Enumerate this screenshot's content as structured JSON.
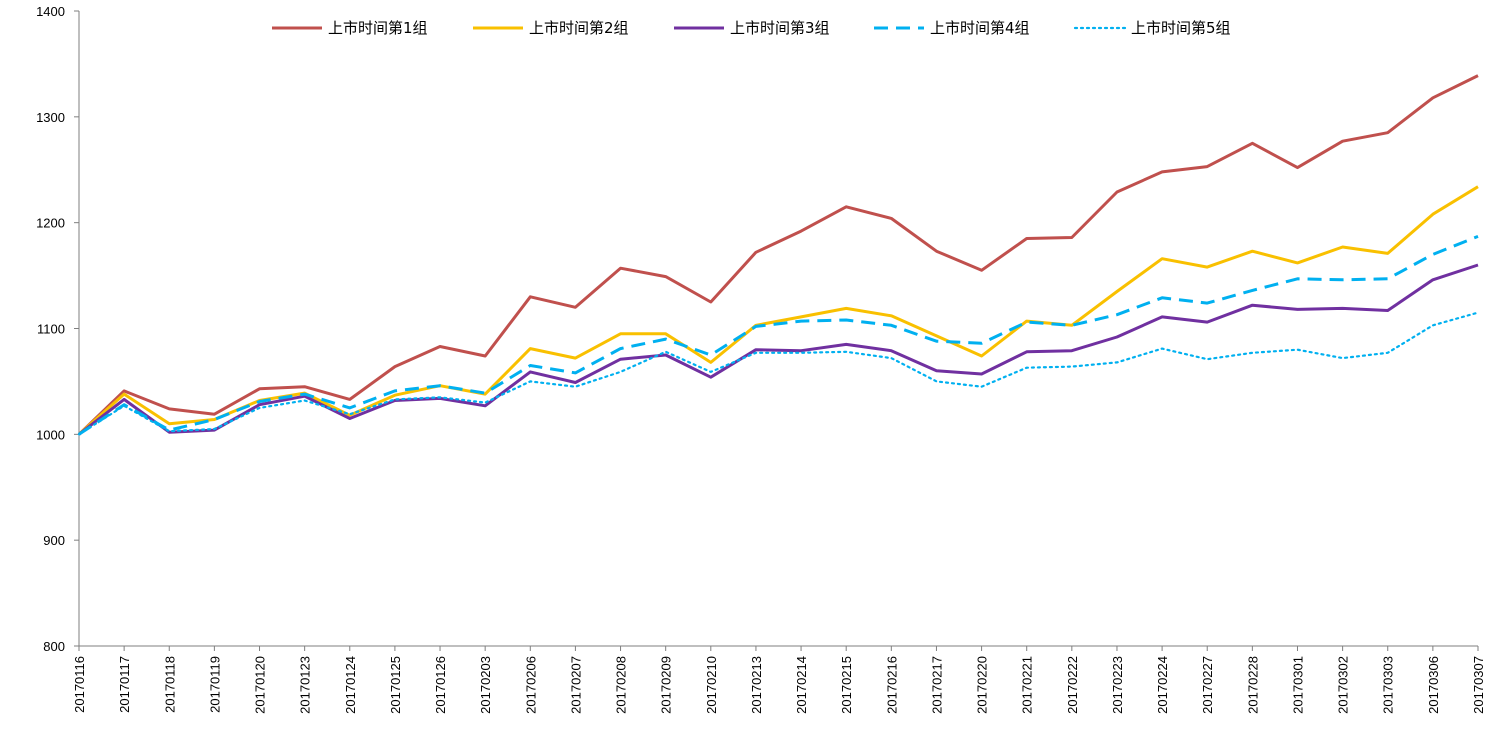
{
  "chart_data": {
    "type": "line",
    "title": "",
    "xlabel": "",
    "ylabel": "",
    "ylim": [
      800,
      1400
    ],
    "yticks": [
      800,
      900,
      1000,
      1100,
      1200,
      1300,
      1400
    ],
    "grid": false,
    "legend_position": "top",
    "categories": [
      "20170116",
      "20170117",
      "20170118",
      "20170119",
      "20170120",
      "20170123",
      "20170124",
      "20170125",
      "20170126",
      "20170203",
      "20170206",
      "20170207",
      "20170208",
      "20170209",
      "20170210",
      "20170213",
      "20170214",
      "20170215",
      "20170216",
      "20170217",
      "20170220",
      "20170221",
      "20170222",
      "20170223",
      "20170224",
      "20170227",
      "20170228",
      "20170301",
      "20170302",
      "20170303",
      "20170306",
      "20170307"
    ],
    "series": [
      {
        "name": "上市时间第1组",
        "color": "#C0504D",
        "dash": "solid",
        "values": [
          1000,
          1041,
          1024,
          1019,
          1043,
          1045,
          1033,
          1064,
          1083,
          1074,
          1130,
          1120,
          1157,
          1149,
          1125,
          1172,
          1192,
          1215,
          1204,
          1173,
          1155,
          1185,
          1186,
          1229,
          1248,
          1253,
          1275,
          1252,
          1277,
          1285,
          1318,
          1339
        ]
      },
      {
        "name": "上市时间第2组",
        "color": "#F9C000",
        "dash": "solid",
        "values": [
          1000,
          1038,
          1010,
          1014,
          1032,
          1039,
          1018,
          1037,
          1046,
          1038,
          1081,
          1072,
          1095,
          1095,
          1068,
          1103,
          1111,
          1119,
          1112,
          1093,
          1074,
          1107,
          1103,
          1135,
          1166,
          1158,
          1173,
          1162,
          1177,
          1171,
          1208,
          1234
        ]
      },
      {
        "name": "上市时间第3组",
        "color": "#7030A0",
        "dash": "solid",
        "values": [
          1000,
          1033,
          1002,
          1004,
          1028,
          1036,
          1015,
          1032,
          1034,
          1027,
          1059,
          1049,
          1071,
          1075,
          1054,
          1080,
          1079,
          1085,
          1079,
          1060,
          1057,
          1078,
          1079,
          1092,
          1111,
          1106,
          1122,
          1118,
          1119,
          1117,
          1146,
          1160
        ]
      },
      {
        "name": "上市时间第4组",
        "color": "#00B0F0",
        "dash": "dashed",
        "values": [
          1000,
          1028,
          1004,
          1014,
          1031,
          1038,
          1025,
          1041,
          1046,
          1039,
          1065,
          1058,
          1081,
          1090,
          1075,
          1102,
          1107,
          1108,
          1103,
          1088,
          1086,
          1106,
          1103,
          1113,
          1129,
          1124,
          1136,
          1147,
          1146,
          1147,
          1170,
          1187
        ]
      },
      {
        "name": "上市时间第5组",
        "color": "#00B0F0",
        "dash": "dotted",
        "values": [
          1000,
          1027,
          1003,
          1005,
          1025,
          1032,
          1019,
          1033,
          1035,
          1030,
          1050,
          1045,
          1059,
          1078,
          1059,
          1077,
          1077,
          1078,
          1072,
          1050,
          1045,
          1063,
          1064,
          1068,
          1081,
          1071,
          1077,
          1080,
          1072,
          1077,
          1103,
          1115
        ]
      }
    ]
  }
}
